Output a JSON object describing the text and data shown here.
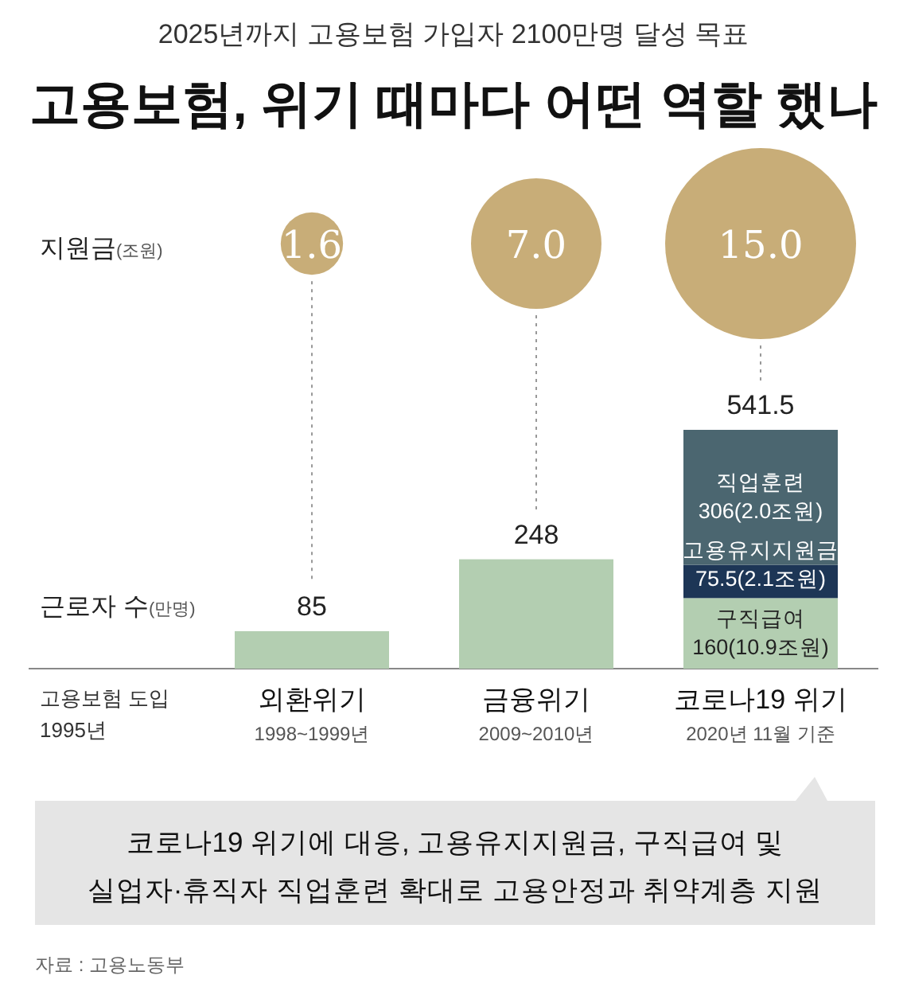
{
  "chart_data": [
    {
      "type": "other",
      "title": "고용보험, 위기 때마다 어떤 역할 했나",
      "subtitle": "2025년까지 고용보험 가입자 2100만명 달성 목표",
      "ylabel": "지원금(조원)",
      "values": [
        1.6,
        7.0,
        15.0
      ],
      "value_labels": [
        "1.6",
        "7.0",
        "15.0"
      ],
      "color": "#c8ad78"
    },
    {
      "type": "bar",
      "stacked": true,
      "ylabel": "근로자 수(만명)",
      "categories": [
        "외환위기",
        "금융위기",
        "코로나19 위기"
      ],
      "series": [
        {
          "color": "#b3ceb1",
          "values": [
            85,
            248,
            160
          ],
          "value_labels": [
            "85",
            "248",
            "구직급여\n160(10.9조원)"
          ]
        },
        {
          "color": "#1d3656",
          "values": [
            null,
            null,
            75.5
          ],
          "value_labels": [
            null,
            null,
            "고용유지지원금\n75.5(2.1조원)"
          ]
        },
        {
          "color": "#4b6670",
          "values": [
            null,
            null,
            306
          ],
          "value_labels": [
            null,
            null,
            "직업훈련\n306(2.0조원)"
          ]
        }
      ],
      "totals": [
        null,
        null,
        "541.5"
      ],
      "annotations": [
        "고용보험 도입\n1995년",
        "1998~1999년",
        "2009~2010년",
        "2020년 11월 기준",
        "코로나19 위기에 대응, 고용유지지원금, 구직급여 및\n실업자·휴직자 직업훈련 확대로 고용안정과 취약계층 지원",
        "자료 : 고용노동부"
      ]
    }
  ]
}
